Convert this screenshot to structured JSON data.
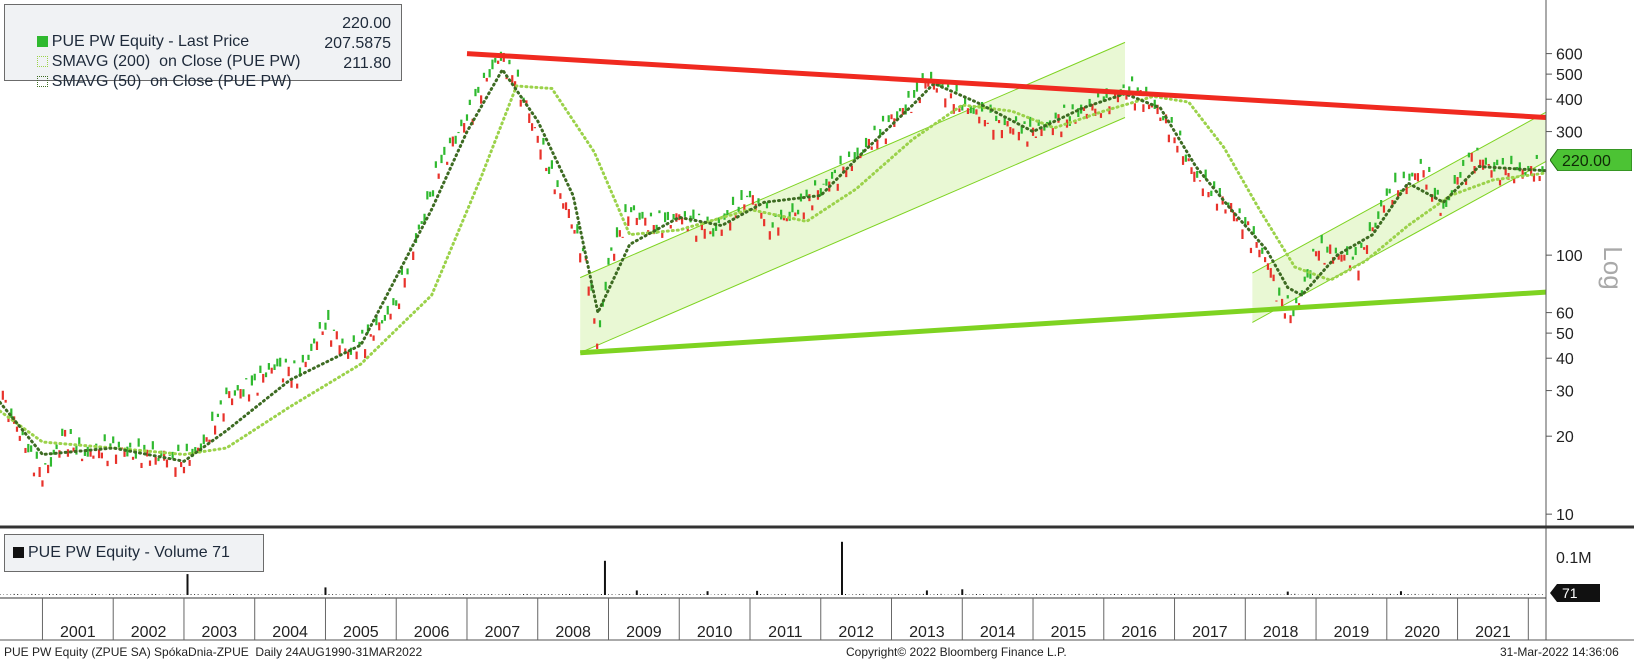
{
  "legend": {
    "last_price_label": "PUE PW Equity - Last Price",
    "last_price_value": "220.00",
    "sma200_label": "SMAVG (200)  on Close (PUE PW)",
    "sma200_value": "207.5875",
    "sma50_label": "SMAVG (50)  on Close (PUE PW)",
    "sma50_value": "211.80"
  },
  "volume_legend": {
    "label": "PUE PW Equity - Volume 71"
  },
  "price_tag": "220.00",
  "volume_tag": "71",
  "axis_scale_label": "Log",
  "footer": {
    "left": "PUE PW Equity (ZPUE SA) SpókaDnia-ZPUE  Daily 24AUG1990-31MAR2022",
    "center": "Copyright© 2022 Bloomberg Finance L.P.",
    "right": "31-Mar-2022 14:36:06"
  },
  "colors": {
    "up": "#2fb92f",
    "down": "#e8322b",
    "resistance": "#f02a20",
    "support": "#7ed321",
    "channel": "#e2f5c5",
    "sma200": "#9bd24a",
    "sma50": "#3d6b22",
    "tag": "#4cc334"
  },
  "chart_data": {
    "type": "line",
    "scale": "log",
    "x_range": [
      2000.4,
      2022.25
    ],
    "y_range": [
      9,
      900
    ],
    "y_ticks": [
      600,
      500,
      400,
      300,
      100,
      60,
      50,
      40,
      30,
      20,
      10
    ],
    "y_tick_labels": [
      "600",
      "500",
      "400",
      "300",
      "100",
      "60",
      "50",
      "40",
      "30",
      "20",
      "10"
    ],
    "x_labels": [
      "2001",
      "2002",
      "2003",
      "2004",
      "2005",
      "2006",
      "2007",
      "2008",
      "2009",
      "2010",
      "2011",
      "2012",
      "2013",
      "2014",
      "2015",
      "2016",
      "2017",
      "2018",
      "2019",
      "2020",
      "2021"
    ],
    "series": [
      {
        "name": "PUE PW Equity - Last Price",
        "x": [
          2000.4,
          2000.7,
          2001.0,
          2001.3,
          2001.6,
          2002.0,
          2002.5,
          2003.0,
          2003.3,
          2003.6,
          2004.0,
          2004.3,
          2004.6,
          2005.0,
          2005.3,
          2005.6,
          2006.0,
          2006.3,
          2006.6,
          2007.0,
          2007.3,
          2007.45,
          2007.7,
          2008.0,
          2008.3,
          2008.5,
          2008.7,
          2008.85,
          2009.0,
          2009.3,
          2009.6,
          2010.0,
          2010.5,
          2011.0,
          2011.3,
          2011.6,
          2012.0,
          2012.5,
          2013.0,
          2013.3,
          2013.5,
          2013.8,
          2014.0,
          2014.5,
          2015.0,
          2015.5,
          2016.0,
          2016.35,
          2016.7,
          2017.0,
          2017.3,
          2017.6,
          2018.0,
          2018.3,
          2018.5,
          2018.7,
          2019.0,
          2019.3,
          2019.6,
          2020.0,
          2020.2,
          2020.5,
          2020.8,
          2021.0,
          2021.25,
          2021.5,
          2022.0,
          2022.25
        ],
        "y": [
          29,
          20,
          14,
          20,
          17,
          18,
          17,
          16,
          19,
          28,
          32,
          38,
          34,
          55,
          42,
          48,
          65,
          120,
          220,
          340,
          500,
          590,
          470,
          280,
          175,
          130,
          90,
          45,
          95,
          150,
          130,
          140,
          125,
          170,
          130,
          145,
          180,
          240,
          330,
          400,
          480,
          420,
          380,
          320,
          300,
          340,
          390,
          440,
          380,
          290,
          200,
          170,
          130,
          95,
          65,
          60,
          105,
          100,
          95,
          170,
          185,
          215,
          150,
          200,
          240,
          215,
          210,
          220
        ]
      },
      {
        "name": "SMAVG (200)  on Close (PUE PW)",
        "x": [
          2000.4,
          2001.0,
          2002.0,
          2003.0,
          2003.6,
          2004.5,
          2005.5,
          2006.5,
          2007.2,
          2007.7,
          2008.2,
          2008.8,
          2009.3,
          2010.0,
          2011.0,
          2011.8,
          2012.5,
          2013.3,
          2014.0,
          2014.7,
          2015.3,
          2016.0,
          2016.7,
          2017.2,
          2017.7,
          2018.2,
          2018.7,
          2019.2,
          2019.7,
          2020.3,
          2020.9,
          2021.5,
          2022.25
        ],
        "y": [
          25,
          19,
          18,
          17,
          18,
          26,
          38,
          70,
          200,
          450,
          440,
          250,
          120,
          125,
          150,
          135,
          180,
          280,
          380,
          360,
          310,
          360,
          410,
          390,
          260,
          150,
          90,
          80,
          95,
          130,
          170,
          195,
          207.5875
        ]
      },
      {
        "name": "SMAVG (50)  on Close (PUE PW)",
        "x": [
          2000.4,
          2001.0,
          2002.0,
          2003.0,
          2003.6,
          2004.5,
          2005.5,
          2006.5,
          2007.0,
          2007.5,
          2008.0,
          2008.5,
          2008.85,
          2009.3,
          2010.0,
          2010.6,
          2011.2,
          2012.0,
          2012.6,
          2013.3,
          2013.6,
          2014.2,
          2015.0,
          2015.7,
          2016.3,
          2016.8,
          2017.3,
          2017.8,
          2018.3,
          2018.6,
          2018.8,
          2019.3,
          2019.8,
          2020.3,
          2020.8,
          2021.3,
          2022.25
        ],
        "y": [
          27,
          17,
          18,
          16,
          21,
          33,
          45,
          150,
          300,
          520,
          330,
          170,
          60,
          110,
          140,
          130,
          160,
          170,
          250,
          380,
          460,
          390,
          300,
          370,
          420,
          370,
          220,
          150,
          105,
          75,
          70,
          100,
          120,
          190,
          160,
          220,
          211.8
        ]
      },
      {
        "name": "",
        "x": [
          2007.0,
          2022.25
        ],
        "y": [
          600,
          340
        ]
      },
      {
        "name": "",
        "x": [
          2008.6,
          2022.25
        ],
        "y": [
          42,
          72
        ]
      }
    ],
    "volume_tag": "71",
    "volume_ticks": [
      "0.1M"
    ],
    "volume_spikes": [
      {
        "x": 2003.05,
        "v": 55000
      },
      {
        "x": 2008.95,
        "v": 90000
      },
      {
        "x": 2012.3,
        "v": 140000
      },
      {
        "x": 2005.0,
        "v": 20000
      },
      {
        "x": 2009.4,
        "v": 12000
      },
      {
        "x": 2010.4,
        "v": 10000
      },
      {
        "x": 2011.1,
        "v": 11000
      },
      {
        "x": 2013.5,
        "v": 12000
      },
      {
        "x": 2014.0,
        "v": 15000
      },
      {
        "x": 2018.6,
        "v": 9000
      },
      {
        "x": 2020.2,
        "v": 10000
      }
    ]
  }
}
